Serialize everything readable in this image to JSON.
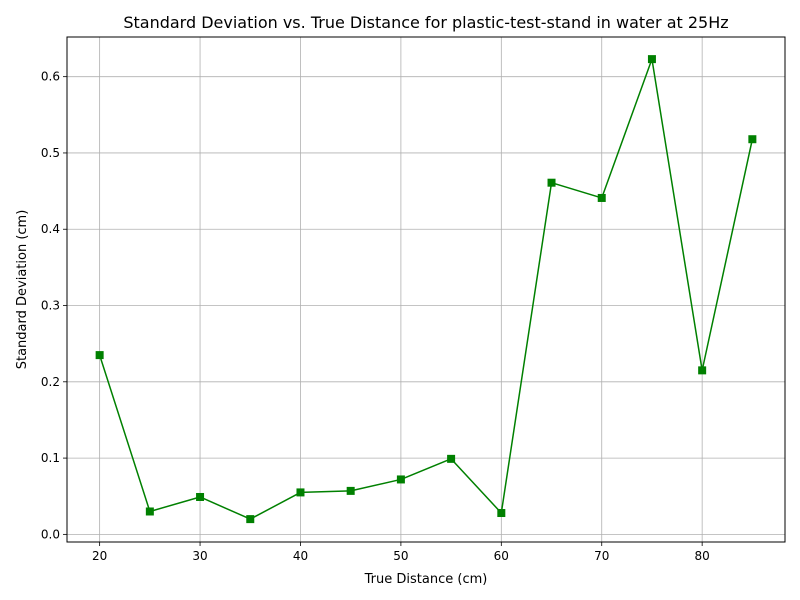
{
  "chart_data": {
    "type": "line",
    "title": "Standard Deviation vs. True Distance for plastic-test-stand in water at 25Hz",
    "xlabel": "True Distance (cm)",
    "ylabel": "Standard Deviation (cm)",
    "xlim": [
      16.75,
      88.25
    ],
    "ylim": [
      -0.01,
      0.652
    ],
    "x_ticks": [
      20,
      30,
      40,
      50,
      60,
      70,
      80
    ],
    "x_tick_labels": [
      "20",
      "30",
      "40",
      "50",
      "60",
      "70",
      "80"
    ],
    "y_ticks": [
      0.0,
      0.1,
      0.2,
      0.3,
      0.4,
      0.5,
      0.6
    ],
    "y_tick_labels": [
      "0.0",
      "0.1",
      "0.2",
      "0.3",
      "0.4",
      "0.5",
      "0.6"
    ],
    "grid": true,
    "legend": "none",
    "series": [
      {
        "color": "#008000",
        "marker": "square",
        "x": [
          20,
          25,
          30,
          35,
          40,
          45,
          50,
          55,
          60,
          65,
          70,
          75,
          80,
          85
        ],
        "y": [
          0.235,
          0.03,
          0.049,
          0.02,
          0.055,
          0.057,
          0.072,
          0.099,
          0.028,
          0.461,
          0.441,
          0.623,
          0.215,
          0.518
        ]
      }
    ]
  }
}
